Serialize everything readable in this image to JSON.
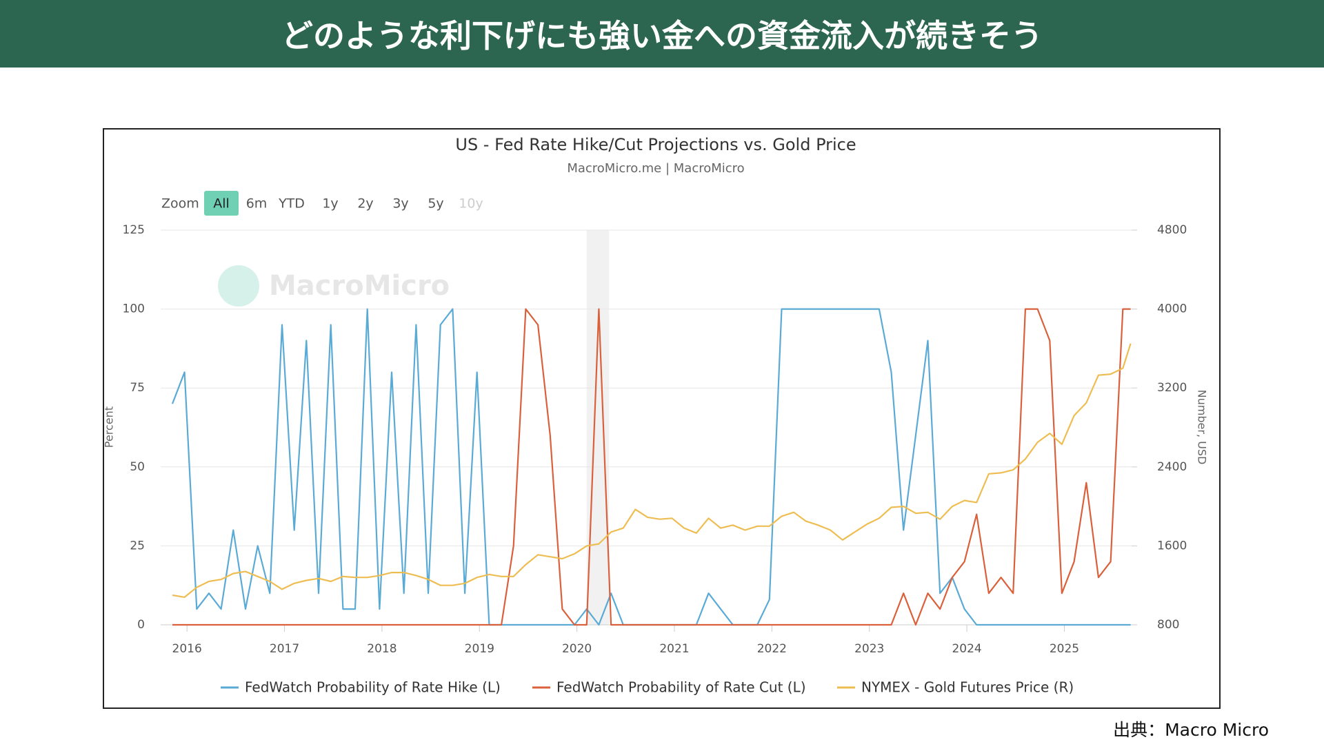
{
  "header": {
    "title": "どのような利下げにも強い金への資金流入が続きそう"
  },
  "source": "出典：Macro Micro",
  "chart_data": {
    "type": "line",
    "title": "US - Fed Rate Hike/Cut Projections vs. Gold Price",
    "subtitle": "MacroMicro.me | MacroMicro",
    "watermark": "MacroMicro",
    "zoom": {
      "label": "Zoom",
      "buttons": [
        "All",
        "6m",
        "YTD",
        "1y",
        "2y",
        "3y",
        "5y",
        "10y"
      ],
      "active": 0,
      "disabled": 7
    },
    "ylabel": "Percent",
    "y2label": "Number, USD",
    "xlim": [
      2015.73,
      2025.69
    ],
    "xticks": [
      2016,
      2017,
      2018,
      2019,
      2020,
      2021,
      2022,
      2023,
      2024,
      2025
    ],
    "ylim": [
      0,
      125
    ],
    "yticks": [
      0,
      25,
      50,
      75,
      100,
      125
    ],
    "y2lim": [
      800,
      4800
    ],
    "y2ticks": [
      800,
      1600,
      2400,
      3200,
      4000,
      4800
    ],
    "grid": true,
    "shaded_range": [
      2020.1,
      2020.33
    ],
    "x": [
      2015.85,
      2015.975,
      2016.1,
      2016.225,
      2016.35,
      2016.475,
      2016.6,
      2016.725,
      2016.85,
      2016.975,
      2017.1,
      2017.225,
      2017.35,
      2017.475,
      2017.6,
      2017.725,
      2017.85,
      2017.975,
      2018.1,
      2018.225,
      2018.35,
      2018.475,
      2018.6,
      2018.725,
      2018.85,
      2018.975,
      2019.1,
      2019.225,
      2019.35,
      2019.475,
      2019.6,
      2019.725,
      2019.85,
      2019.975,
      2020.1,
      2020.225,
      2020.35,
      2020.475,
      2020.6,
      2020.725,
      2020.85,
      2020.975,
      2021.1,
      2021.225,
      2021.35,
      2021.475,
      2021.6,
      2021.725,
      2021.85,
      2021.975,
      2022.1,
      2022.225,
      2022.35,
      2022.475,
      2022.6,
      2022.725,
      2022.85,
      2022.975,
      2023.1,
      2023.225,
      2023.35,
      2023.475,
      2023.6,
      2023.725,
      2023.85,
      2023.975,
      2024.1,
      2024.225,
      2024.35,
      2024.475,
      2024.6,
      2024.725,
      2024.85,
      2024.975,
      2025.1,
      2025.225,
      2025.35,
      2025.475,
      2025.6,
      2025.68
    ],
    "series": [
      {
        "name": "FedWatch Probability of Rate Hike (L)",
        "color": "#5aaad6",
        "axis": "y",
        "values": [
          70,
          80,
          5,
          10,
          5,
          30,
          5,
          25,
          10,
          95,
          30,
          90,
          10,
          95,
          5,
          5,
          100,
          5,
          80,
          10,
          95,
          10,
          95,
          100,
          10,
          80,
          0,
          0,
          0,
          0,
          0,
          0,
          0,
          0,
          5,
          0,
          10,
          0,
          0,
          0,
          0,
          0,
          0,
          0,
          10,
          5,
          0,
          0,
          0,
          8,
          100,
          100,
          100,
          100,
          100,
          100,
          100,
          100,
          100,
          80,
          30,
          60,
          90,
          10,
          15,
          5,
          0,
          0,
          0,
          0,
          0,
          0,
          0,
          0,
          0,
          0,
          0,
          0,
          0,
          0
        ]
      },
      {
        "name": "FedWatch Probability of Rate Cut (L)",
        "color": "#d9603b",
        "axis": "y",
        "values": [
          0,
          0,
          0,
          0,
          0,
          0,
          0,
          0,
          0,
          0,
          0,
          0,
          0,
          0,
          0,
          0,
          0,
          0,
          0,
          0,
          0,
          0,
          0,
          0,
          0,
          0,
          0,
          0,
          25,
          100,
          95,
          60,
          5,
          0,
          0,
          100,
          0,
          0,
          0,
          0,
          0,
          0,
          0,
          0,
          0,
          0,
          0,
          0,
          0,
          0,
          0,
          0,
          0,
          0,
          0,
          0,
          0,
          0,
          0,
          0,
          10,
          0,
          10,
          5,
          15,
          20,
          35,
          10,
          15,
          10,
          100,
          100,
          90,
          10,
          20,
          45,
          15,
          20,
          100,
          100
        ]
      },
      {
        "name": "NYMEX - Gold Futures Price (R)",
        "color": "#eebd52",
        "axis": "y2",
        "values": [
          1100,
          1080,
          1180,
          1240,
          1260,
          1320,
          1340,
          1290,
          1240,
          1160,
          1220,
          1250,
          1270,
          1240,
          1290,
          1280,
          1280,
          1300,
          1330,
          1330,
          1300,
          1260,
          1200,
          1200,
          1220,
          1280,
          1310,
          1290,
          1290,
          1410,
          1510,
          1490,
          1470,
          1520,
          1600,
          1620,
          1740,
          1780,
          1970,
          1890,
          1870,
          1880,
          1780,
          1730,
          1880,
          1780,
          1810,
          1760,
          1800,
          1800,
          1900,
          1940,
          1850,
          1810,
          1760,
          1660,
          1740,
          1820,
          1880,
          1990,
          2000,
          1930,
          1940,
          1870,
          2000,
          2060,
          2040,
          2330,
          2340,
          2370,
          2480,
          2650,
          2740,
          2630,
          2920,
          3050,
          3330,
          3340,
          3400,
          3650
        ]
      }
    ]
  }
}
